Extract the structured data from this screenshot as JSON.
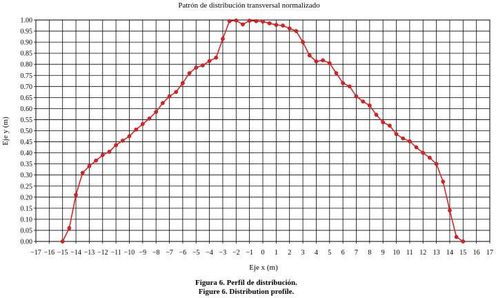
{
  "chart_data": {
    "type": "line",
    "title": "Patrón de distribución transversal normalizado",
    "xlabel": "Eje x (m)",
    "ylabel": "Eje y (m)",
    "xlim": [
      -17,
      17
    ],
    "ylim": [
      0,
      1
    ],
    "grid": true,
    "x_ticks": [
      "−17",
      "−16",
      "−15",
      "−14",
      "−13",
      "−12",
      "−11",
      "−10",
      "−9",
      "−8",
      "−7",
      "−6",
      "−5",
      "−4",
      "−3",
      "−2",
      "−1",
      "0",
      "1",
      "2",
      "3",
      "4",
      "5",
      "6",
      "7",
      "8",
      "9",
      "10",
      "11",
      "12",
      "13",
      "14",
      "15",
      "16",
      "17"
    ],
    "y_ticks": [
      "0.00",
      "0.05",
      "0.10",
      "0.15",
      "0.20",
      "0.25",
      "0.30",
      "0.35",
      "0.40",
      "0.45",
      "0.50",
      "0.55",
      "0.60",
      "0.65",
      "0.70",
      "0.75",
      "0.80",
      "0.85",
      "0.90",
      "0.95",
      "1.00"
    ],
    "series": [
      {
        "color": "#e02020",
        "x": [
          -15,
          -14.5,
          -14,
          -13.5,
          -13,
          -12.5,
          -12,
          -11.5,
          -11,
          -10.5,
          -10,
          -9.5,
          -9,
          -8.5,
          -8,
          -7.5,
          -7,
          -6.5,
          -6,
          -5.5,
          -5,
          -4.5,
          -4,
          -3.5,
          -3,
          -2.5,
          -2,
          -1.5,
          -1,
          -0.5,
          0,
          0.5,
          1,
          1.5,
          2,
          2.5,
          3,
          3.5,
          4,
          4.5,
          5,
          5.5,
          6,
          6.5,
          7,
          7.5,
          8,
          8.5,
          9,
          9.5,
          10,
          10.5,
          11,
          11.5,
          12,
          12.5,
          13,
          13.5,
          14,
          14.5,
          15
        ],
        "y": [
          0.0,
          0.06,
          0.21,
          0.31,
          0.34,
          0.365,
          0.39,
          0.405,
          0.435,
          0.455,
          0.475,
          0.505,
          0.53,
          0.555,
          0.585,
          0.625,
          0.655,
          0.675,
          0.715,
          0.76,
          0.785,
          0.795,
          0.815,
          0.83,
          0.915,
          0.995,
          0.998,
          0.98,
          0.997,
          0.995,
          0.993,
          0.985,
          0.978,
          0.975,
          0.962,
          0.95,
          0.9,
          0.84,
          0.813,
          0.818,
          0.805,
          0.76,
          0.715,
          0.7,
          0.655,
          0.632,
          0.614,
          0.572,
          0.538,
          0.523,
          0.485,
          0.465,
          0.452,
          0.425,
          0.4,
          0.378,
          0.35,
          0.27,
          0.14,
          0.02,
          0.0
        ]
      }
    ]
  },
  "caption": {
    "line1": "Figura 6. Perfil de distribución.",
    "line2": "Figure 6. Distribution profile."
  }
}
